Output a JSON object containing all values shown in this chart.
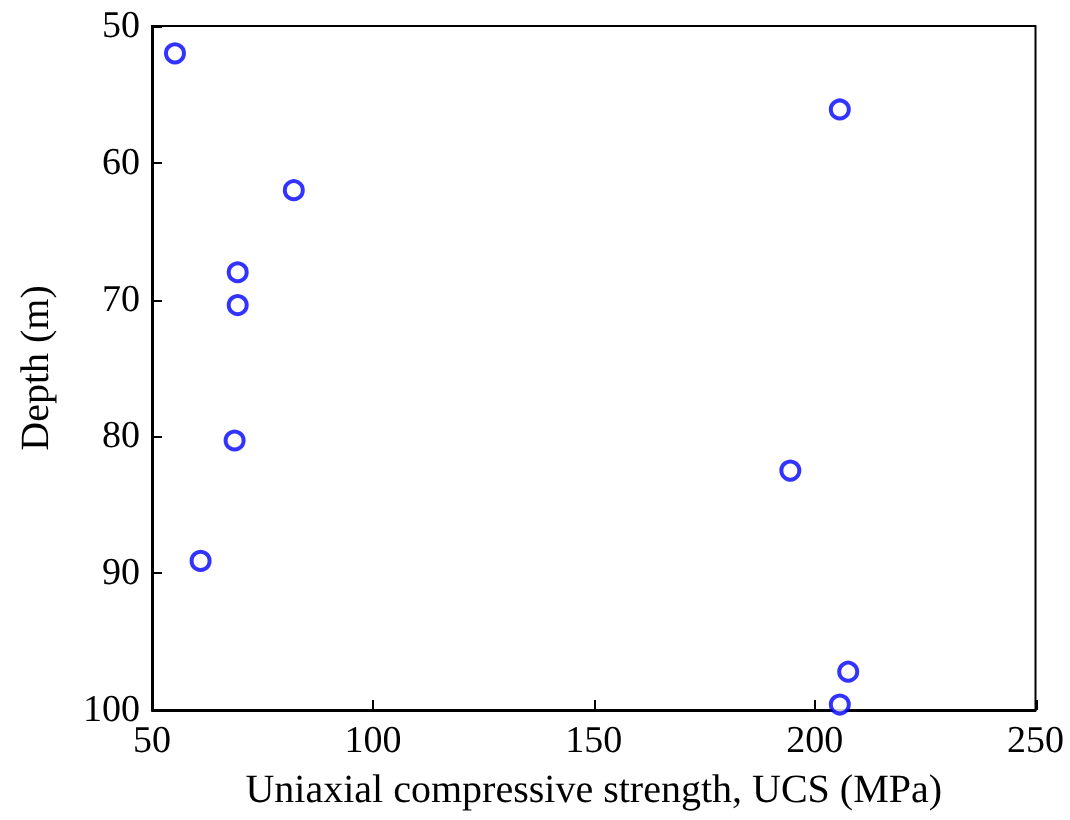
{
  "chart_data": {
    "type": "scatter",
    "xlabel": "Uniaxial compressive strength, UCS (MPa)",
    "ylabel": "Depth (m)",
    "x": [
      55.2,
      82.1,
      69.4,
      69.4,
      68.7,
      61.0,
      205.7,
      194.5,
      207.6,
      205.7
    ],
    "series": [
      {
        "color": "#0000ff",
        "values": [
          52.0,
          62.0,
          68.0,
          70.4,
          80.3,
          89.1,
          56.1,
          82.5,
          97.2,
          99.6
        ]
      }
    ],
    "xlim": [
      50,
      250
    ],
    "xticks": [
      50,
      100,
      150,
      200,
      250
    ],
    "ylim": [
      100,
      50
    ],
    "yticks": [
      50,
      60,
      70,
      80,
      90,
      100
    ],
    "marker": "circle"
  }
}
